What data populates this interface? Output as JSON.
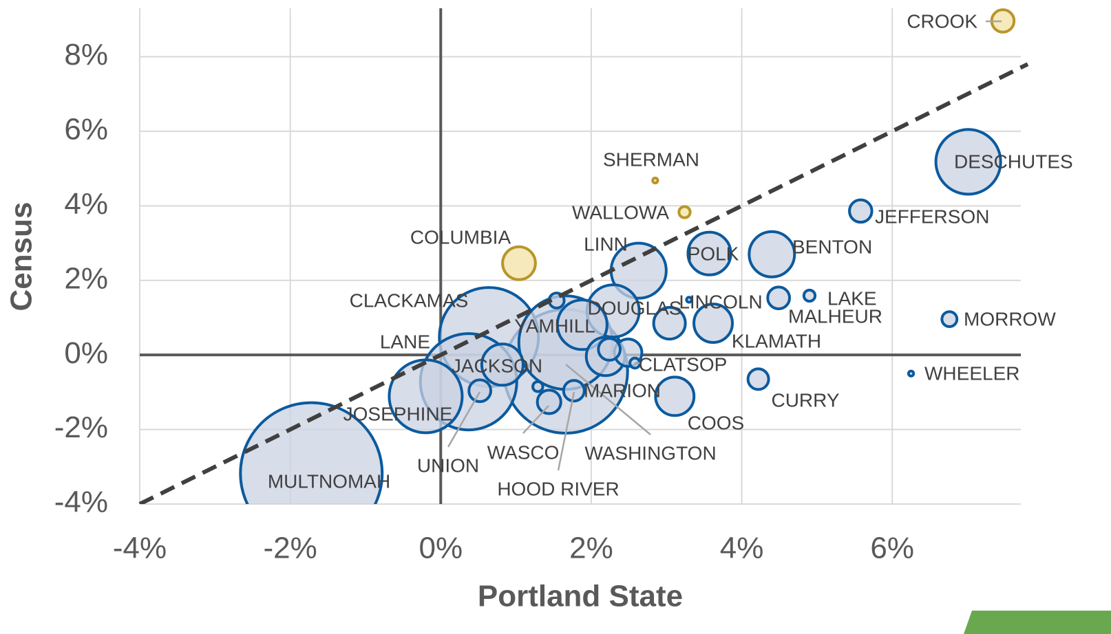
{
  "chart_data": {
    "type": "bubble",
    "xlabel": "Portland State",
    "ylabel": "Census",
    "xlim": [
      -4,
      7.8
    ],
    "ylim": [
      -4,
      9.3
    ],
    "xticks": [
      {
        "value": -4,
        "label": "-4%"
      },
      {
        "value": -2,
        "label": "-2%"
      },
      {
        "value": 0,
        "label": "0%"
      },
      {
        "value": 2,
        "label": "2%"
      },
      {
        "value": 4,
        "label": "4%"
      },
      {
        "value": 6,
        "label": "6%"
      }
    ],
    "yticks": [
      {
        "value": -4,
        "label": "-4%"
      },
      {
        "value": -2,
        "label": "-2%"
      },
      {
        "value": 0,
        "label": "0%"
      },
      {
        "value": 2,
        "label": "2%"
      },
      {
        "value": 4,
        "label": "4%"
      },
      {
        "value": 6,
        "label": "6%"
      },
      {
        "value": 8,
        "label": "8%"
      }
    ],
    "grid": true,
    "reference_line": {
      "slope": 1,
      "intercept": 0,
      "style": "dashed",
      "color": "#404040"
    },
    "labels": [
      "CROOK",
      "DESCHUTES",
      "SHERMAN",
      "WALLOWA",
      "JEFFERSON",
      "COLUMBIA",
      "LINN",
      "POLK",
      "BENTON",
      "LAKE",
      "MALHEUR",
      "LINCOLN",
      "KLAMATH",
      "DOUGLAS",
      "YAMHILL",
      "CLACKAMAS",
      "LANE",
      "JACKSON",
      "JOSEPHINE",
      "MULTNOMAH",
      "WASHINGTON",
      "MARION",
      "HOOD RIVER",
      "WASCO",
      "UNION",
      "COOS",
      "CURRY",
      "WHEELER",
      "MORROW",
      "CLATSOP",
      null,
      null,
      null,
      null,
      null,
      null
    ],
    "x": [
      7.47,
      7.01,
      2.85,
      3.24,
      5.58,
      1.04,
      2.63,
      3.57,
      4.4,
      4.9,
      4.49,
      3.04,
      3.62,
      2.29,
      1.88,
      0.64,
      0.37,
      -0.2,
      0.82,
      -1.72,
      1.66,
      1.66,
      1.77,
      1.44,
      0.52,
      3.11,
      4.22,
      6.25,
      6.76,
      2.58,
      1.54,
      2.24,
      2.19,
      2.49,
      1.29,
      3.3
    ],
    "y": [
      8.96,
      5.18,
      4.68,
      3.83,
      3.86,
      2.46,
      2.26,
      2.72,
      2.7,
      1.59,
      1.53,
      0.85,
      0.85,
      1.18,
      0.81,
      0.48,
      -0.72,
      -1.11,
      -0.26,
      -3.18,
      -0.44,
      0.33,
      -0.96,
      -1.26,
      -0.96,
      -1.11,
      -0.65,
      -0.5,
      0.96,
      -0.22,
      1.46,
      0.15,
      -0.04,
      0.06,
      -0.85,
      1.48
    ],
    "sizes": [
      20,
      167,
      1,
      5,
      20,
      43,
      121,
      73,
      82,
      5,
      19,
      40,
      59,
      109,
      98,
      391,
      370,
      212,
      68,
      800,
      611,
      349,
      17,
      22,
      19,
      59,
      17,
      1,
      9,
      4,
      9,
      19,
      59,
      30,
      4,
      1
    ],
    "colors": [
      "#b8962a",
      "#0b5a9e",
      "#b8962a",
      "#b8962a",
      "#0b5a9e",
      "#b8962a",
      "#0b5a9e",
      "#0b5a9e",
      "#0b5a9e",
      "#0b5a9e",
      "#0b5a9e",
      "#0b5a9e",
      "#0b5a9e",
      "#0b5a9e",
      "#0b5a9e",
      "#0b5a9e",
      "#0b5a9e",
      "#0b5a9e",
      "#0b5a9e",
      "#0b5a9e",
      "#0b5a9e",
      "#0b5a9e",
      "#0b5a9e",
      "#0b5a9e",
      "#0b5a9e",
      "#0b5a9e",
      "#0b5a9e",
      "#0b5a9e",
      "#0b5a9e",
      "#0b5a9e",
      "#0b5a9e",
      "#0b5a9e",
      "#0b5a9e",
      "#0b5a9e",
      "#0b5a9e",
      "#0b5a9e"
    ],
    "fills": [
      "#f3e3a6",
      "#c9d2e1",
      "#f3e3a6",
      "#f3e3a6",
      "#c9d2e1",
      "#f3e3a6",
      "#c9d2e1",
      "#c9d2e1",
      "#c9d2e1",
      "#c9d2e1",
      "#c9d2e1",
      "#c9d2e1",
      "#c9d2e1",
      "#c9d2e1",
      "#c9d2e1",
      "#c9d2e1",
      "#c9d2e1",
      "#c9d2e1",
      "#c9d2e1",
      "#c9d2e1",
      "#c9d2e1",
      "#c9d2e1",
      "#c9d2e1",
      "#c9d2e1",
      "#c9d2e1",
      "#c9d2e1",
      "#c9d2e1",
      "#c9d2e1",
      "#c9d2e1",
      "#c9d2e1",
      "#c9d2e1",
      "#c9d2e1",
      "#c9d2e1",
      "#c9d2e1",
      "#c9d2e1",
      "#c9d2e1"
    ]
  }
}
